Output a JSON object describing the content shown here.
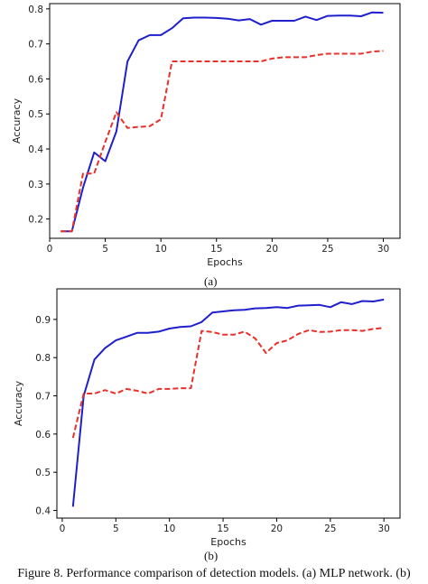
{
  "figure_caption": "Figure 8. Performance comparison of detection models. (a) MLP network. (b)",
  "chart_data": [
    {
      "type": "line",
      "panel_label": "(a)",
      "xlabel": "Epochs",
      "ylabel": "Accuracy",
      "xlim": [
        0,
        31.5
      ],
      "ylim": [
        0.145,
        0.815
      ],
      "xticks": [
        0,
        5,
        10,
        15,
        20,
        25,
        30
      ],
      "yticks": [
        0.2,
        0.3,
        0.4,
        0.5,
        0.6,
        0.7,
        0.8
      ],
      "x": [
        1,
        2,
        3,
        4,
        5,
        6,
        7,
        8,
        9,
        10,
        11,
        12,
        13,
        14,
        15,
        16,
        17,
        18,
        19,
        20,
        21,
        22,
        23,
        24,
        25,
        26,
        27,
        28,
        29,
        30
      ],
      "series": [
        {
          "color": "#1f1fcc",
          "dash": "solid",
          "values": [
            0.165,
            0.165,
            0.29,
            0.39,
            0.365,
            0.45,
            0.65,
            0.71,
            0.725,
            0.725,
            0.745,
            0.773,
            0.775,
            0.775,
            0.774,
            0.772,
            0.767,
            0.771,
            0.755,
            0.766,
            0.766,
            0.766,
            0.778,
            0.768,
            0.78,
            0.781,
            0.781,
            0.779,
            0.79,
            0.789
          ]
        },
        {
          "color": "#e8312b",
          "dash": "dashed",
          "values": [
            0.165,
            0.165,
            0.33,
            0.33,
            0.42,
            0.505,
            0.46,
            0.463,
            0.465,
            0.485,
            0.65,
            0.65,
            0.65,
            0.65,
            0.65,
            0.65,
            0.65,
            0.65,
            0.65,
            0.658,
            0.662,
            0.662,
            0.662,
            0.668,
            0.672,
            0.672,
            0.672,
            0.672,
            0.678,
            0.68
          ]
        }
      ]
    },
    {
      "type": "line",
      "panel_label": "(b)",
      "xlabel": "Epochs",
      "ylabel": "Accuracy",
      "xlim": [
        -0.5,
        31.5
      ],
      "ylim": [
        0.38,
        0.98
      ],
      "xticks": [
        0,
        5,
        10,
        15,
        20,
        25,
        30
      ],
      "yticks": [
        0.4,
        0.5,
        0.6,
        0.7,
        0.8,
        0.9
      ],
      "x": [
        1,
        2,
        3,
        4,
        5,
        6,
        7,
        8,
        9,
        10,
        11,
        12,
        13,
        14,
        15,
        16,
        17,
        18,
        19,
        20,
        21,
        22,
        23,
        24,
        25,
        26,
        27,
        28,
        29,
        30
      ],
      "series": [
        {
          "color": "#1f1fcc",
          "dash": "solid",
          "values": [
            0.41,
            0.7,
            0.795,
            0.825,
            0.845,
            0.855,
            0.865,
            0.865,
            0.868,
            0.876,
            0.88,
            0.882,
            0.893,
            0.918,
            0.921,
            0.924,
            0.925,
            0.929,
            0.93,
            0.932,
            0.93,
            0.936,
            0.937,
            0.938,
            0.932,
            0.945,
            0.94,
            0.948,
            0.947,
            0.952
          ]
        },
        {
          "color": "#e8312b",
          "dash": "dashed",
          "values": [
            0.59,
            0.706,
            0.706,
            0.715,
            0.706,
            0.718,
            0.713,
            0.706,
            0.718,
            0.718,
            0.72,
            0.72,
            0.87,
            0.867,
            0.86,
            0.86,
            0.868,
            0.85,
            0.812,
            0.838,
            0.845,
            0.862,
            0.872,
            0.867,
            0.868,
            0.872,
            0.872,
            0.87,
            0.875,
            0.878
          ]
        }
      ]
    }
  ]
}
